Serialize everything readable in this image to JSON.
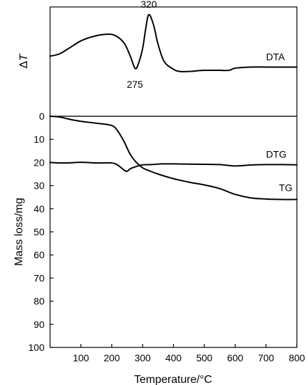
{
  "chart_data": [
    {
      "type": "line",
      "panel": "top",
      "ylabel_symbol": "Δ",
      "ylabel_var": "T",
      "xlim": [
        0,
        800
      ],
      "series": [
        {
          "name": "DTA",
          "x": [
            0,
            30,
            60,
            100,
            140,
            180,
            210,
            240,
            260,
            275,
            285,
            300,
            310,
            320,
            335,
            350,
            370,
            400,
            420,
            450,
            500,
            550,
            580,
            600,
            650,
            700,
            750,
            800
          ],
          "y": [
            0.55,
            0.57,
            0.62,
            0.69,
            0.73,
            0.75,
            0.74,
            0.67,
            0.55,
            0.44,
            0.47,
            0.62,
            0.8,
            0.93,
            0.84,
            0.66,
            0.5,
            0.43,
            0.41,
            0.41,
            0.42,
            0.42,
            0.42,
            0.44,
            0.45,
            0.45,
            0.45,
            0.45
          ]
        }
      ],
      "annotations": [
        {
          "text": "320",
          "x": 320,
          "y": 0.93
        },
        {
          "text": "275",
          "x": 275,
          "y": 0.44
        },
        {
          "text": "DTA",
          "x": 700,
          "y": 0.45
        }
      ]
    },
    {
      "type": "line",
      "panel": "bottom",
      "xlabel": "Temperature/°C",
      "ylabel": "Mass loss/mg",
      "xlim": [
        0,
        800
      ],
      "ylim": [
        0,
        100
      ],
      "y_inverted": true,
      "xticks": [
        100,
        200,
        300,
        400,
        500,
        600,
        700,
        800
      ],
      "yticks": [
        0,
        10,
        20,
        30,
        40,
        50,
        60,
        70,
        80,
        90,
        100
      ],
      "series": [
        {
          "name": "TG",
          "x": [
            0,
            30,
            60,
            100,
            150,
            200,
            220,
            240,
            260,
            280,
            300,
            320,
            350,
            400,
            450,
            500,
            550,
            600,
            650,
            700,
            750,
            800
          ],
          "y": [
            0,
            0.3,
            1.2,
            2.2,
            3,
            4,
            6.5,
            11,
            16.5,
            20,
            22.3,
            23.5,
            25,
            27,
            28.5,
            29.7,
            31.3,
            33.8,
            35.3,
            35.8,
            36,
            36
          ]
        },
        {
          "name": "DTG",
          "x": [
            0,
            50,
            100,
            150,
            200,
            220,
            240,
            250,
            260,
            280,
            300,
            330,
            360,
            400,
            450,
            500,
            550,
            600,
            650,
            700,
            750,
            800
          ],
          "y": [
            20,
            20.2,
            19.9,
            20.2,
            20.2,
            21.2,
            23.3,
            23.8,
            22.7,
            21.7,
            21,
            20.9,
            20.6,
            20.6,
            20.7,
            20.8,
            20.9,
            21.5,
            21.1,
            20.9,
            20.9,
            21
          ]
        }
      ],
      "annotations": [
        {
          "text": "DTG",
          "x": 700,
          "y": 20.9
        },
        {
          "text": "TG",
          "x": 760,
          "y": 36
        }
      ]
    }
  ]
}
